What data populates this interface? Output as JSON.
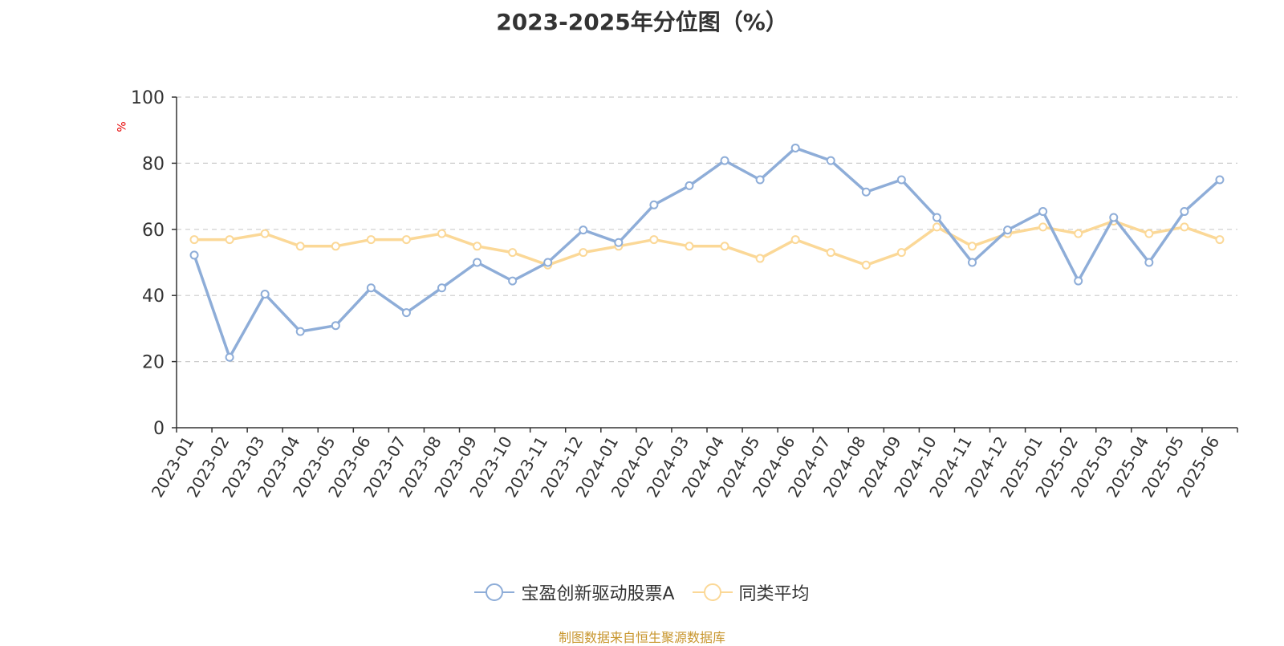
{
  "chart_data": {
    "type": "line",
    "title": "2023-2025年分位图（%）",
    "y_unit": "%",
    "ylim": [
      0,
      100
    ],
    "y_ticks": [
      0,
      20,
      40,
      60,
      80,
      100
    ],
    "grid": true,
    "legend_position": "bottom",
    "categories": [
      "2023-01",
      "2023-02",
      "2023-03",
      "2023-04",
      "2023-05",
      "2023-06",
      "2023-07",
      "2023-08",
      "2023-09",
      "2023-10",
      "2023-11",
      "2023-12",
      "2024-01",
      "2024-02",
      "2024-03",
      "2024-04",
      "2024-05",
      "2024-06",
      "2024-07",
      "2024-08",
      "2024-09",
      "2024-10",
      "2024-11",
      "2024-12",
      "2025-01",
      "2025-02",
      "2025-03",
      "2025-04",
      "2025-05",
      "2025-06"
    ],
    "series": [
      {
        "name": "宝盈创新驱动股票A",
        "color": "#8eadd8",
        "values": [
          52.2,
          21.3,
          40.4,
          29.1,
          30.9,
          42.3,
          34.8,
          42.3,
          50.0,
          44.4,
          50.0,
          59.8,
          56.0,
          67.4,
          73.2,
          80.8,
          75.0,
          84.6,
          80.8,
          71.3,
          75.0,
          63.6,
          50.0,
          59.8,
          65.4,
          44.4,
          63.6,
          50.0,
          65.4,
          75.0
        ]
      },
      {
        "name": "同类平均",
        "color": "#fbd897",
        "values": [
          56.9,
          56.9,
          58.7,
          54.9,
          54.9,
          56.9,
          56.9,
          58.7,
          54.9,
          53.0,
          49.2,
          53.0,
          54.9,
          56.9,
          54.9,
          54.9,
          51.2,
          56.9,
          53.0,
          49.2,
          53.0,
          60.7,
          54.9,
          58.7,
          60.7,
          58.7,
          62.5,
          58.7,
          60.7,
          56.9
        ]
      }
    ]
  },
  "source_text": "制图数据来自恒生聚源数据库"
}
